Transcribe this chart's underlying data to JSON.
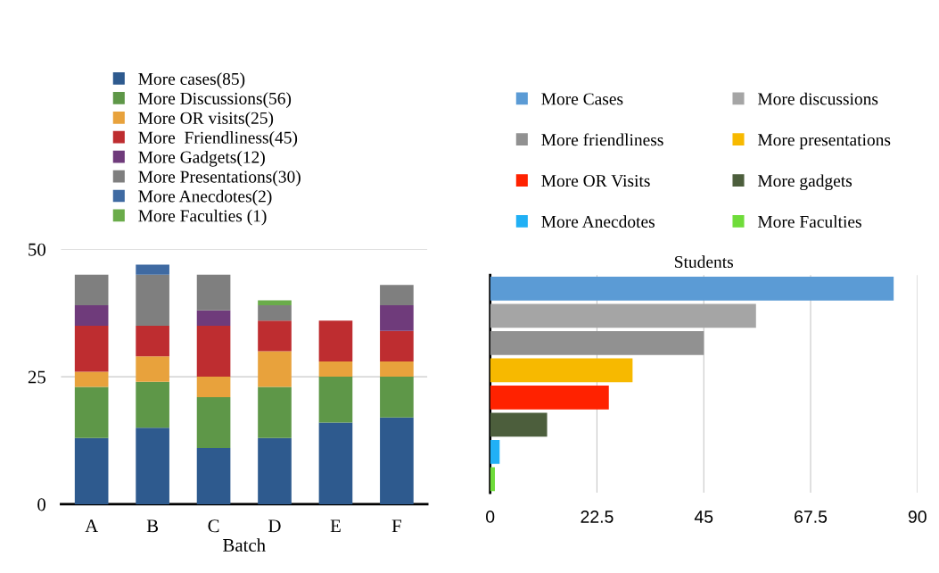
{
  "chart_data": [
    {
      "type": "bar",
      "stacked": true,
      "xlabel": "Batch",
      "categories": [
        "A",
        "B",
        "C",
        "D",
        "E",
        "F"
      ],
      "ylim": [
        0,
        50
      ],
      "yticks": [
        0,
        25,
        50
      ],
      "grid": "y",
      "legend": "top",
      "series": [
        {
          "name": "More cases(85)",
          "color": "#2e5a8e",
          "values": [
            13,
            15,
            11,
            13,
            16,
            17
          ]
        },
        {
          "name": "More Discussions(56)",
          "color": "#5e9748",
          "values": [
            10,
            9,
            10,
            10,
            9,
            8
          ]
        },
        {
          "name": "More OR visits(25)",
          "color": "#e8a23c",
          "values": [
            3,
            5,
            4,
            7,
            3,
            3
          ]
        },
        {
          "name": "More  Friendliness(45)",
          "color": "#be2d30",
          "values": [
            9,
            6,
            10,
            6,
            8,
            6
          ]
        },
        {
          "name": "More Gadgets(12)",
          "color": "#6f3b7b",
          "values": [
            4,
            0,
            3,
            0,
            0,
            5
          ]
        },
        {
          "name": "More Presentations(30)",
          "color": "#7f7f7f",
          "values": [
            6,
            10,
            7,
            3,
            0,
            4
          ]
        },
        {
          "name": "More Anecdotes(2)",
          "color": "#3f6aa2",
          "values": [
            0,
            2,
            0,
            0,
            0,
            0
          ]
        },
        {
          "name": "More Faculties (1)",
          "color": "#6aac4a",
          "values": [
            0,
            0,
            0,
            1,
            0,
            0
          ]
        }
      ]
    },
    {
      "type": "bar",
      "orientation": "horizontal",
      "title": "Students",
      "categories": [
        null,
        null,
        null,
        null,
        null,
        null,
        null,
        null
      ],
      "xlim": [
        0,
        90
      ],
      "xticks": [
        0,
        22.5,
        45,
        67.5,
        90
      ],
      "grid": "x",
      "legend": "top",
      "series": [
        {
          "name": "More Cases",
          "color": "#5b9bd5",
          "values": [
            85,
            null,
            null,
            null,
            null,
            null,
            null,
            null
          ]
        },
        {
          "name": "More discussions",
          "color": "#a5a5a5",
          "values": [
            null,
            56,
            null,
            null,
            null,
            null,
            null,
            null
          ]
        },
        {
          "name": "More friendliness",
          "color": "#919191",
          "values": [
            null,
            null,
            45,
            null,
            null,
            null,
            null,
            null
          ]
        },
        {
          "name": "More presentations",
          "color": "#f7b900",
          "values": [
            null,
            null,
            null,
            30,
            null,
            null,
            null,
            null
          ]
        },
        {
          "name": "More OR Visits",
          "color": "#ff2200",
          "values": [
            null,
            null,
            null,
            null,
            25,
            null,
            null,
            null
          ]
        },
        {
          "name": "More gadgets",
          "color": "#4c5e3c",
          "values": [
            null,
            null,
            null,
            null,
            null,
            12,
            null,
            null
          ]
        },
        {
          "name": "More Anecdotes",
          "color": "#21b0f5",
          "values": [
            null,
            null,
            null,
            null,
            null,
            null,
            2,
            null
          ]
        },
        {
          "name": "More Faculties",
          "color": "#6fdc3a",
          "values": [
            null,
            null,
            null,
            null,
            null,
            null,
            null,
            1
          ]
        }
      ]
    }
  ]
}
